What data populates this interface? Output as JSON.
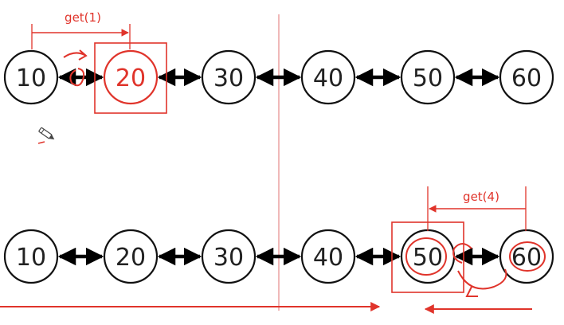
{
  "lists": [
    {
      "values": [
        "10",
        "20",
        "30",
        "40",
        "50",
        "60"
      ],
      "highlight_index": 1,
      "call_label": "get(1)"
    },
    {
      "values": [
        "10",
        "20",
        "30",
        "40",
        "50",
        "60"
      ],
      "highlight_index": 4,
      "call_label": "get(4)"
    }
  ],
  "colors": {
    "annotation": "#e0342b",
    "node_stroke": "#111111",
    "link": "#000000",
    "divider": "#e58a8a"
  },
  "icons": {
    "cursor": "pencil-cursor-icon"
  }
}
